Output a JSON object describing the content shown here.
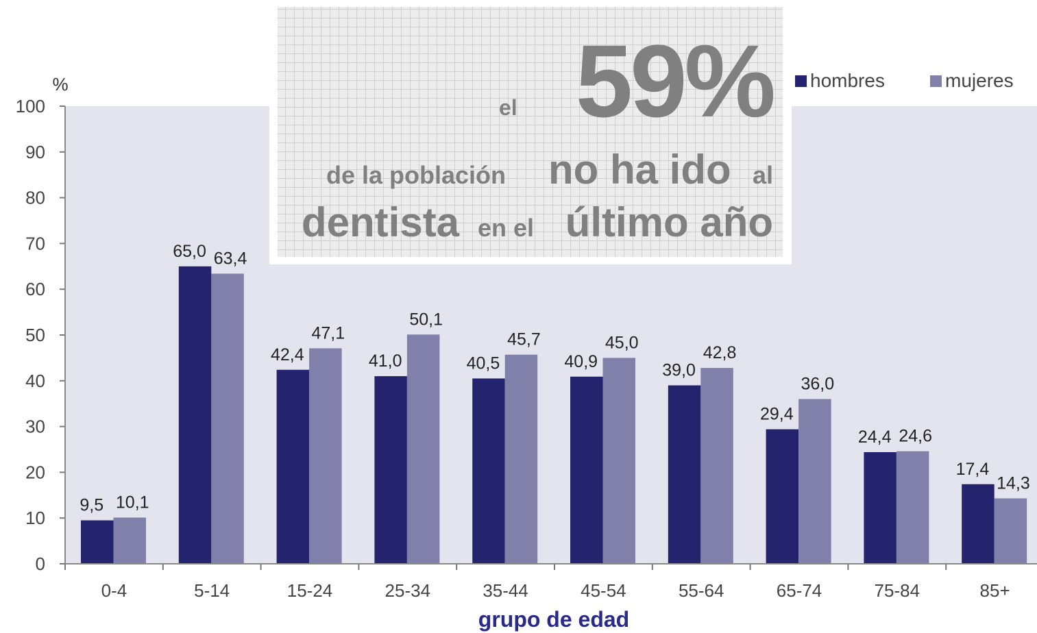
{
  "chart_data": {
    "type": "bar",
    "y_unit_label": "%",
    "x_label": "grupo de edad",
    "categories": [
      "0-4",
      "5-14",
      "15-24",
      "25-34",
      "35-44",
      "45-54",
      "55-64",
      "65-74",
      "75-84",
      "85+"
    ],
    "series": [
      {
        "name": "hombres",
        "color": "#24246e",
        "values": [
          9.5,
          65.0,
          42.4,
          41.0,
          40.5,
          40.9,
          39.0,
          29.4,
          24.4,
          17.4
        ],
        "value_labels": [
          "9,5",
          "65,0",
          "42,4",
          "41,0",
          "40,5",
          "40,9",
          "39,0",
          "29,4",
          "24,4",
          "17,4"
        ]
      },
      {
        "name": "mujeres",
        "color": "#8080aa",
        "values": [
          10.1,
          63.4,
          47.1,
          50.1,
          45.7,
          45.0,
          42.8,
          36.0,
          24.6,
          14.3
        ],
        "value_labels": [
          "10,1",
          "63,4",
          "47,1",
          "50,1",
          "45,7",
          "45,0",
          "42,8",
          "36,0",
          "24,6",
          "14,3"
        ]
      }
    ],
    "ylim": [
      0,
      100
    ],
    "yticks": [
      0,
      10,
      20,
      30,
      40,
      50,
      60,
      70,
      80,
      90,
      100
    ],
    "legend": "top-right",
    "annotation": [
      "el",
      "59%",
      "de la población",
      "no ha ido",
      "al",
      "dentista",
      "en el",
      "último año"
    ]
  }
}
